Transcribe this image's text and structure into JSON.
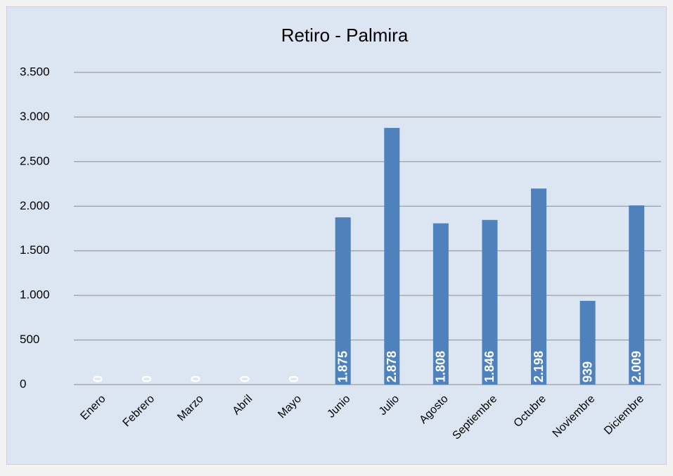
{
  "chart_data": {
    "type": "bar",
    "title": "Retiro - Palmira",
    "categories": [
      "Enero",
      "Febrero",
      "Marzo",
      "Abril",
      "Mayo",
      "Junio",
      "Julio",
      "Agosto",
      "Septiembre",
      "Octubre",
      "Noviembre",
      "Diciembre"
    ],
    "values": [
      0,
      0,
      0,
      0,
      0,
      1875,
      2878,
      1808,
      1846,
      2198,
      939,
      2009
    ],
    "value_labels": [
      "0",
      "0",
      "0",
      "0",
      "0",
      "1.875",
      "2.878",
      "1.808",
      "1.846",
      "2.198",
      "939",
      "2.009"
    ],
    "color": "#4f81bd",
    "ylim": [
      0,
      3500
    ],
    "yticks": [
      0,
      500,
      {
        "value": 1000,
        "label": "1.000"
      },
      {
        "value": 1500,
        "label": "1.500"
      },
      {
        "value": 2000,
        "label": "2.000"
      },
      {
        "value": 2500,
        "label": "2.500"
      },
      {
        "value": 3000,
        "label": "3.000"
      },
      {
        "value": 3500,
        "label": "3.500"
      }
    ],
    "grid": true
  }
}
